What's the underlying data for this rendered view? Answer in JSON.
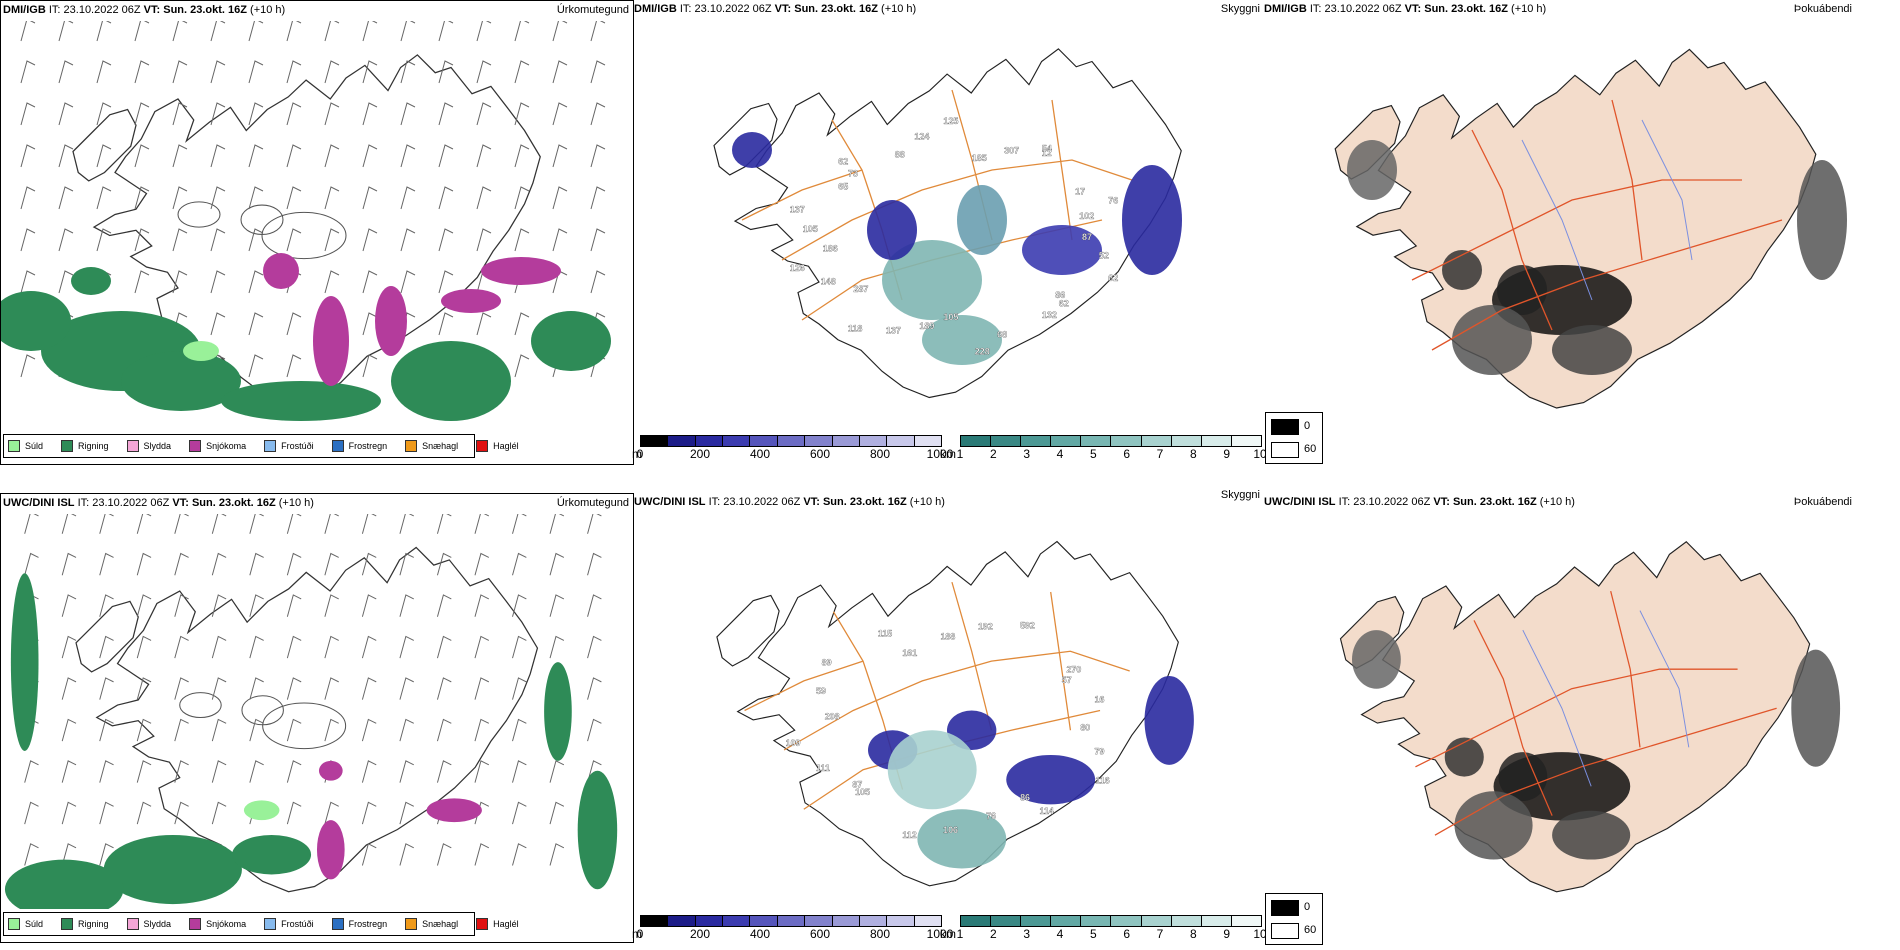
{
  "rows": [
    {
      "precip": {
        "model": "DMI/IGB",
        "it_label": "IT:",
        "it": "23.10.2022 06Z",
        "vt_label": "VT:",
        "vt": "Sun. 23.okt. 16Z",
        "lead": "(+10 h)",
        "title": "Úrkomutegund"
      },
      "vis": {
        "model": "DMI/IGB",
        "it_label": "IT:",
        "it": "23.10.2022 06Z",
        "vt_label": "VT:",
        "vt": "Sun. 23.okt. 16Z",
        "lead": "(+10 h)",
        "title": "Skyggni",
        "values": [
          "87",
          "52",
          "62",
          "62",
          "86",
          "132",
          "68",
          "228",
          "105",
          "189",
          "137",
          "118",
          "287",
          "148",
          "126",
          "186",
          "105",
          "137",
          "65",
          "62",
          "73",
          "88",
          "124",
          "125",
          "185",
          "307",
          "54",
          "12",
          "17",
          "76",
          "102"
        ]
      },
      "fog": {
        "model": "DMI/IGB",
        "it_label": "IT:",
        "it": "23.10.2022 06Z",
        "vt_label": "VT:",
        "vt": "Sun. 23.okt. 16Z",
        "lead": "(+10 h)",
        "title": "Þokuábendi"
      }
    },
    {
      "precip": {
        "model": "UWC/DINI ISL",
        "it_label": "IT:",
        "it": "23.10.2022 06Z",
        "vt_label": "VT:",
        "vt": "Sun. 23.okt. 16Z",
        "lead": "(+10 h)",
        "title": "Úrkomutegund"
      },
      "vis": {
        "model": "UWC/DINI ISL",
        "it_label": "IT:",
        "it": "23.10.2022 06Z",
        "vt_label": "VT:",
        "vt": "Sun. 23.okt. 16Z",
        "lead": "(+10 h)",
        "title": "Skyggni",
        "values": [
          "80",
          "79",
          "116",
          "114",
          "86",
          "76",
          "106",
          "112",
          "105",
          "87",
          "111",
          "109",
          "208",
          "59",
          "89",
          "115",
          "161",
          "188",
          "192",
          "592",
          "270",
          "57",
          "16"
        ]
      },
      "fog": {
        "model": "UWC/DINI ISL",
        "it_label": "IT:",
        "it": "23.10.2022 06Z",
        "vt_label": "VT:",
        "vt": "Sun. 23.okt. 16Z",
        "lead": "(+10 h)",
        "title": "Þokuábendi"
      }
    }
  ],
  "precip_legend": [
    {
      "label": "Súld",
      "color": "#99f199"
    },
    {
      "label": "Rigning",
      "color": "#2e8b57"
    },
    {
      "label": "Slydda",
      "color": "#f4a6d7"
    },
    {
      "label": "Snjókoma",
      "color": "#b43c9c"
    },
    {
      "label": "Frostúði",
      "color": "#88bbee"
    },
    {
      "label": "Frostregn",
      "color": "#2b6fc2"
    },
    {
      "label": "Snæhagl",
      "color": "#f09a1a"
    },
    {
      "label": "Haglél",
      "color": "#e01010"
    }
  ],
  "height_scale": {
    "unit": "m",
    "ticks": [
      "0",
      "200",
      "400",
      "600",
      "800",
      "1000"
    ],
    "colors": [
      "#000000",
      "#1c1c88",
      "#2a2aa0",
      "#3c3cb0",
      "#5555bb",
      "#6c6cc4",
      "#8282cc",
      "#9a9ad6",
      "#b0b0e0",
      "#c8c8ea",
      "#e0e0f2"
    ]
  },
  "vis_scale": {
    "unit": "km",
    "ticks": [
      "1",
      "2",
      "3",
      "4",
      "5",
      "6",
      "7",
      "8",
      "9",
      "10"
    ],
    "colors": [
      "#2a7a76",
      "#3a8884",
      "#4c9894",
      "#62a8a4",
      "#78b6b2",
      "#8fc4c0",
      "#a8d2cf",
      "#c0dfdc",
      "#d8ecea",
      "#f0f8f7"
    ]
  },
  "fog_legend": [
    {
      "label": "0",
      "color": "#000000"
    },
    {
      "label": "60",
      "color": "#ffffff"
    }
  ]
}
